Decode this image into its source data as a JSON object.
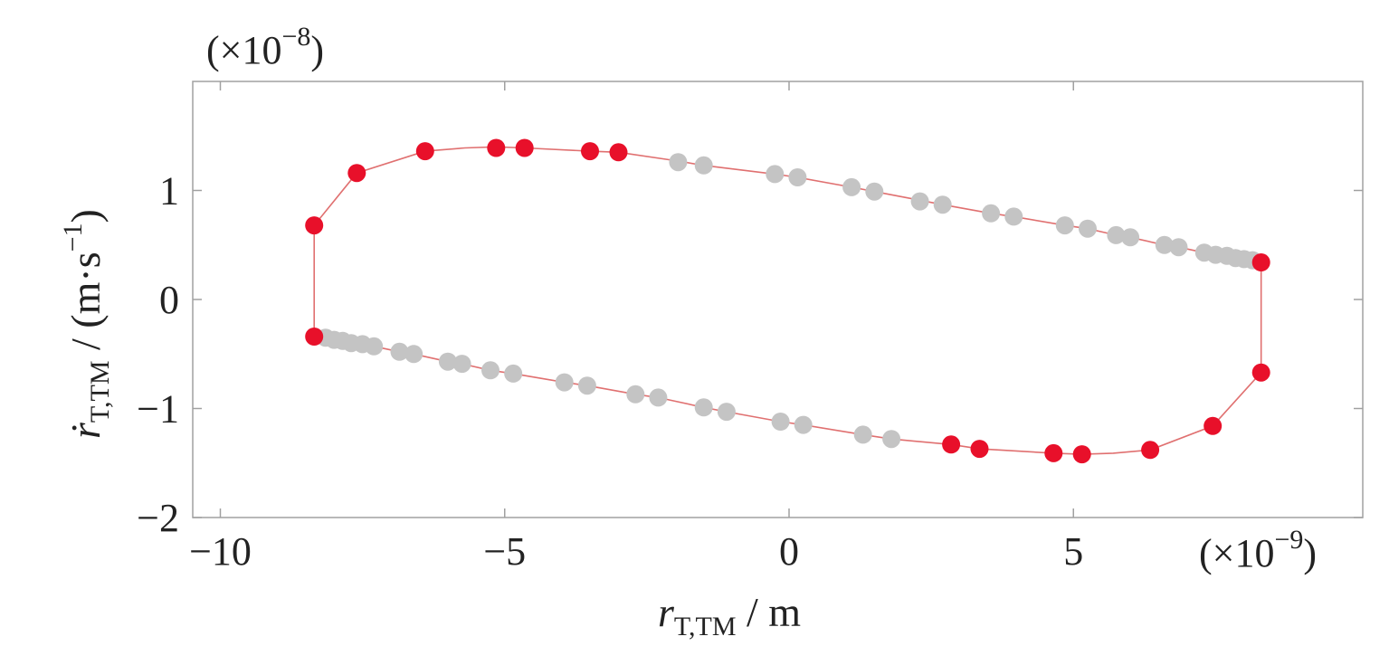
{
  "chart_data": {
    "type": "scatter",
    "x_multiplier": "(×10",
    "x_multiplier_exp": "−9",
    "y_multiplier": "(×10",
    "y_multiplier_exp": "−8",
    "xlabel_main": "r",
    "xlabel_sub": "T,TM",
    "xlabel_unit": " / m",
    "ylabel_main": "ṙ",
    "ylabel_sub": "T,TM",
    "ylabel_unit": " / (m·s",
    "ylabel_unit_exp": "−1",
    "ylabel_unit_close": ")",
    "xlim": [
      -10,
      10
    ],
    "ylim": [
      -2,
      2
    ],
    "xticks": [
      -10,
      -5,
      0,
      5
    ],
    "xtick_labels": [
      "−10",
      "−5",
      "0",
      "5"
    ],
    "yticks": [
      -2,
      -1,
      0,
      1
    ],
    "ytick_labels": [
      "−2",
      "−1",
      "0",
      "1"
    ],
    "grid": false,
    "colors": {
      "curve": "#e07070",
      "red_point": "#e8102a",
      "gray_point": "#c4c4c4",
      "frame": "#a0a0a0"
    },
    "series": [
      {
        "color": "red",
        "points": [
          [
            -8.35,
            0.68
          ],
          [
            -7.6,
            1.16
          ],
          [
            -6.4,
            1.36
          ],
          [
            -5.15,
            1.39
          ],
          [
            -4.65,
            1.39
          ],
          [
            -3.5,
            1.36
          ],
          [
            -3.0,
            1.35
          ],
          [
            8.3,
            0.34
          ],
          [
            -8.35,
            -0.34
          ],
          [
            2.85,
            -1.33
          ],
          [
            3.35,
            -1.37
          ],
          [
            4.65,
            -1.41
          ],
          [
            5.15,
            -1.42
          ],
          [
            6.35,
            -1.38
          ],
          [
            7.45,
            -1.16
          ],
          [
            8.3,
            -0.67
          ]
        ]
      },
      {
        "color": "gray",
        "points": [
          [
            -1.95,
            1.26
          ],
          [
            -1.5,
            1.23
          ],
          [
            -0.25,
            1.15
          ],
          [
            0.15,
            1.12
          ],
          [
            1.1,
            1.03
          ],
          [
            1.5,
            0.99
          ],
          [
            2.3,
            0.9
          ],
          [
            2.7,
            0.87
          ],
          [
            3.55,
            0.79
          ],
          [
            3.95,
            0.76
          ],
          [
            4.85,
            0.68
          ],
          [
            5.25,
            0.65
          ],
          [
            5.75,
            0.59
          ],
          [
            6.0,
            0.57
          ],
          [
            6.6,
            0.5
          ],
          [
            6.85,
            0.48
          ],
          [
            7.3,
            0.43
          ],
          [
            7.5,
            0.41
          ],
          [
            7.7,
            0.4
          ],
          [
            7.85,
            0.38
          ],
          [
            8.0,
            0.37
          ],
          [
            8.15,
            0.36
          ],
          [
            -8.15,
            -0.35
          ],
          [
            -8.0,
            -0.37
          ],
          [
            -7.85,
            -0.38
          ],
          [
            -7.7,
            -0.4
          ],
          [
            -7.5,
            -0.41
          ],
          [
            -7.3,
            -0.43
          ],
          [
            -6.85,
            -0.48
          ],
          [
            -6.6,
            -0.5
          ],
          [
            -6.0,
            -0.57
          ],
          [
            -5.75,
            -0.59
          ],
          [
            -5.25,
            -0.65
          ],
          [
            -4.85,
            -0.68
          ],
          [
            -3.95,
            -0.76
          ],
          [
            -3.55,
            -0.79
          ],
          [
            -2.7,
            -0.87
          ],
          [
            -2.3,
            -0.9
          ],
          [
            -1.5,
            -0.99
          ],
          [
            -1.1,
            -1.03
          ],
          [
            -0.15,
            -1.12
          ],
          [
            0.25,
            -1.15
          ],
          [
            1.3,
            -1.24
          ],
          [
            1.8,
            -1.28
          ]
        ]
      }
    ],
    "curve": [
      [
        -8.35,
        0.0
      ],
      [
        -8.35,
        0.68
      ],
      [
        -7.6,
        1.16
      ],
      [
        -6.4,
        1.36
      ],
      [
        -5.7,
        1.39
      ],
      [
        -5.15,
        1.4
      ],
      [
        -4.65,
        1.39
      ],
      [
        -3.5,
        1.36
      ],
      [
        -3.0,
        1.35
      ],
      [
        -1.95,
        1.27
      ],
      [
        -1.5,
        1.23
      ],
      [
        -0.25,
        1.15
      ],
      [
        0.15,
        1.12
      ],
      [
        1.1,
        1.03
      ],
      [
        1.5,
        0.99
      ],
      [
        2.3,
        0.91
      ],
      [
        2.7,
        0.87
      ],
      [
        3.55,
        0.79
      ],
      [
        3.95,
        0.76
      ],
      [
        4.85,
        0.68
      ],
      [
        5.25,
        0.65
      ],
      [
        5.75,
        0.59
      ],
      [
        6.0,
        0.57
      ],
      [
        6.6,
        0.5
      ],
      [
        6.85,
        0.48
      ],
      [
        7.3,
        0.43
      ],
      [
        8.3,
        0.34
      ],
      [
        8.3,
        -0.67
      ],
      [
        7.45,
        -1.16
      ],
      [
        6.35,
        -1.38
      ],
      [
        5.7,
        -1.41
      ],
      [
        5.15,
        -1.42
      ],
      [
        4.65,
        -1.41
      ],
      [
        3.35,
        -1.37
      ],
      [
        2.85,
        -1.33
      ],
      [
        1.8,
        -1.28
      ],
      [
        1.3,
        -1.24
      ],
      [
        0.25,
        -1.15
      ],
      [
        -0.15,
        -1.12
      ],
      [
        -1.1,
        -1.03
      ],
      [
        -1.5,
        -0.99
      ],
      [
        -2.3,
        -0.9
      ],
      [
        -2.7,
        -0.87
      ],
      [
        -3.55,
        -0.79
      ],
      [
        -3.95,
        -0.76
      ],
      [
        -4.85,
        -0.68
      ],
      [
        -5.25,
        -0.65
      ],
      [
        -5.75,
        -0.59
      ],
      [
        -6.0,
        -0.57
      ],
      [
        -6.6,
        -0.5
      ],
      [
        -6.85,
        -0.48
      ],
      [
        -7.3,
        -0.43
      ],
      [
        -8.35,
        -0.34
      ],
      [
        -8.35,
        0.0
      ]
    ]
  }
}
